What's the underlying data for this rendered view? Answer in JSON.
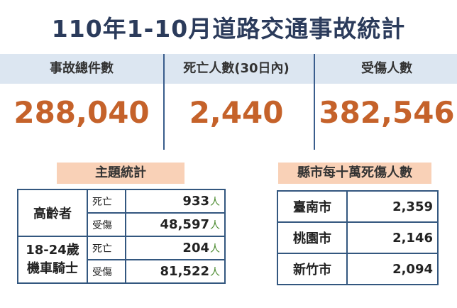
{
  "title": "110年1-10月道路交通事故統計",
  "stats": [
    {
      "label": "事故總件數",
      "value": "288,040"
    },
    {
      "label": "死亡人數(30日內)",
      "value": "2,440"
    },
    {
      "label": "受傷人數",
      "value": "382,546"
    }
  ],
  "topic": {
    "tag": "主題統計",
    "unit": "人",
    "groups": [
      {
        "name": "高齡者",
        "rows": [
          {
            "type": "死亡",
            "value": "933"
          },
          {
            "type": "受傷",
            "value": "48,597"
          }
        ]
      },
      {
        "name_line1": "18-24歲",
        "name_line2": "機車騎士",
        "rows": [
          {
            "type": "死亡",
            "value": "204"
          },
          {
            "type": "受傷",
            "value": "81,522"
          }
        ]
      }
    ]
  },
  "county": {
    "tag": "縣市每十萬死傷人數",
    "rows": [
      {
        "city": "臺南市",
        "value": "2,359"
      },
      {
        "city": "桃園市",
        "value": "2,146"
      },
      {
        "city": "新竹市",
        "value": "2,094"
      }
    ]
  },
  "colors": {
    "title": "#2b3b5b",
    "accent": "#c5622a",
    "header_bg": "#dce6f1",
    "tag_bg": "#f9d1b7",
    "number": "#4a8a2e",
    "border": "#33577f"
  }
}
